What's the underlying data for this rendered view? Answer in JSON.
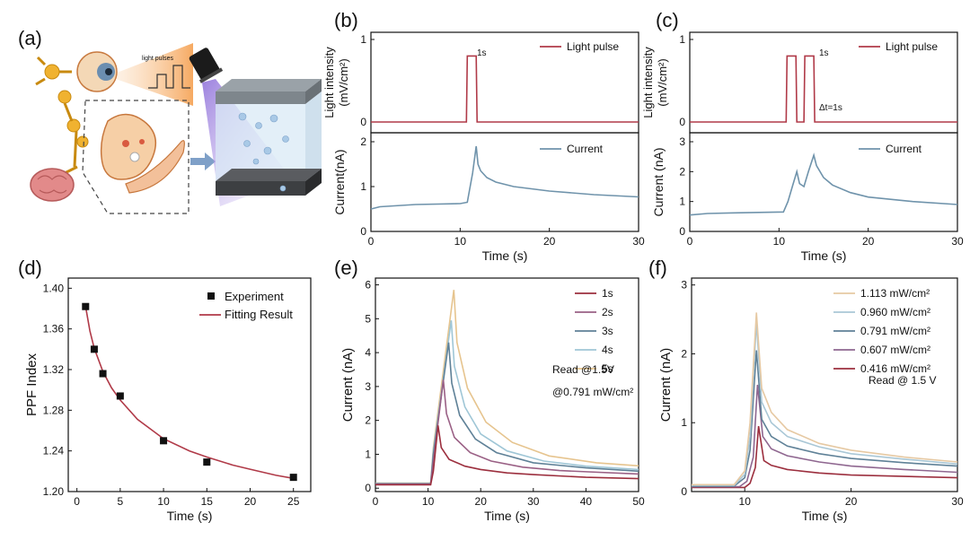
{
  "figure": {
    "panel_labels": {
      "a": "(a)",
      "b": "(b)",
      "c": "(c)",
      "d": "(d)",
      "e": "(e)",
      "f": "(f)"
    },
    "illustration_a": {
      "light_pulses_label": "light pulses"
    },
    "colors": {
      "red": "#b03a48",
      "blue": "#6f93ab",
      "orange": "#f08a3c"
    }
  },
  "chart_data": [
    {
      "id": "b",
      "type": "line",
      "top": {
        "ylabel": "Light intensity (mV/cm²)",
        "ylabel_lines": [
          "Light intensity",
          "(mV/cm²)"
        ],
        "yticks": [
          "1",
          "0"
        ],
        "ylim": [
          0,
          1
        ],
        "series": [
          {
            "name": "Light pulse",
            "color": "#b03a48",
            "x": [
              0,
              10.7,
              10.8,
              11.8,
              11.9,
              30
            ],
            "y": [
              0,
              0,
              0.8,
              0.8,
              0,
              0
            ]
          }
        ],
        "annotations": [
          "1s"
        ]
      },
      "bottom": {
        "ylabel": "Current(nA)",
        "yticks": [
          "0",
          "1",
          "2"
        ],
        "ylim": [
          0,
          2.2
        ],
        "series": [
          {
            "name": "Current",
            "color": "#6f93ab",
            "x": [
              0,
              1,
              5,
              10,
              10.8,
              11.4,
              11.8,
              12,
              12.3,
              13,
              14,
              16,
              20,
              25,
              30
            ],
            "y": [
              0.5,
              0.55,
              0.6,
              0.62,
              0.65,
              1.3,
              1.9,
              1.5,
              1.35,
              1.2,
              1.1,
              1.0,
              0.9,
              0.82,
              0.77
            ]
          }
        ]
      },
      "xlabel": "Time (s)",
      "xticks": [
        "0",
        "10",
        "20",
        "30"
      ],
      "xlim": [
        0,
        30
      ]
    },
    {
      "id": "c",
      "type": "line",
      "top": {
        "ylabel": "Light intensity (mV/cm²)",
        "ylabel_lines": [
          "Light intensity",
          "(mV/cm²)"
        ],
        "yticks": [
          "1",
          "0"
        ],
        "ylim": [
          0,
          1
        ],
        "series": [
          {
            "name": "Light pulse",
            "color": "#b03a48",
            "x": [
              0,
              10.8,
              10.9,
              11.9,
              12,
              12.8,
              12.9,
              13.9,
              14,
              30
            ],
            "y": [
              0,
              0,
              0.8,
              0.8,
              0,
              0,
              0.8,
              0.8,
              0,
              0
            ]
          }
        ],
        "annotations": [
          "1s",
          "Δt=1s"
        ]
      },
      "bottom": {
        "ylabel": "Current (nA)",
        "yticks": [
          "0",
          "1",
          "2",
          "3"
        ],
        "ylim": [
          0,
          3.3
        ],
        "series": [
          {
            "name": "Current",
            "color": "#6f93ab",
            "x": [
              0,
              2,
              5,
              10.5,
              11,
              11.5,
              12,
              12.3,
              12.8,
              13.3,
              13.9,
              14.2,
              15,
              16,
              18,
              20,
              25,
              30
            ],
            "y": [
              0.55,
              0.6,
              0.62,
              0.65,
              1.0,
              1.5,
              2.0,
              1.6,
              1.5,
              2.0,
              2.55,
              2.2,
              1.8,
              1.55,
              1.3,
              1.15,
              1.0,
              0.9
            ]
          }
        ]
      },
      "xlabel": "Time (s)",
      "xticks": [
        "0",
        "10",
        "20",
        "30"
      ],
      "xlim": [
        0,
        30
      ]
    },
    {
      "id": "d",
      "type": "scatter",
      "xlabel": "Time (s)",
      "ylabel": "PPF Index",
      "xticks": [
        "0",
        "5",
        "10",
        "15",
        "20",
        "25"
      ],
      "xlim": [
        -1,
        27
      ],
      "yticks": [
        "1.20",
        "1.24",
        "1.28",
        "1.32",
        "1.36",
        "1.40"
      ],
      "ylim": [
        1.2,
        1.41
      ],
      "series": [
        {
          "name": "Experiment",
          "marker": "square",
          "color": "#111111",
          "x": [
            1,
            2,
            3,
            5,
            10,
            15,
            25
          ],
          "y": [
            1.382,
            1.34,
            1.316,
            1.294,
            1.25,
            1.229,
            1.214
          ]
        },
        {
          "name": "Fitting Result",
          "color": "#b03a48",
          "x": [
            1,
            1.5,
            2,
            3,
            4,
            5,
            7,
            10,
            13,
            15,
            18,
            20,
            23,
            25
          ],
          "y": [
            1.382,
            1.358,
            1.341,
            1.318,
            1.302,
            1.29,
            1.271,
            1.252,
            1.24,
            1.234,
            1.226,
            1.222,
            1.216,
            1.213
          ]
        }
      ]
    },
    {
      "id": "e",
      "type": "line",
      "xlabel": "Time (s)",
      "ylabel": "Current (nA)",
      "xticks": [
        "0",
        "10",
        "20",
        "30",
        "40",
        "50"
      ],
      "xlim": [
        0,
        50
      ],
      "yticks": [
        "0",
        "1",
        "2",
        "3",
        "4",
        "5",
        "6"
      ],
      "ylim": [
        -0.1,
        6.2
      ],
      "annotations": [
        "Read @1.5V",
        "@0.791 mW/cm²"
      ],
      "series": [
        {
          "name": "1s",
          "color": "#9c2f3e",
          "x": [
            0,
            10.5,
            11,
            11.9,
            12.5,
            14,
            17,
            20,
            25,
            30,
            40,
            50
          ],
          "y": [
            0.1,
            0.1,
            0.5,
            1.85,
            1.2,
            0.85,
            0.65,
            0.55,
            0.45,
            0.4,
            0.32,
            0.28
          ]
        },
        {
          "name": "2s",
          "color": "#9a6085",
          "x": [
            0,
            10.5,
            11,
            12.9,
            13.5,
            15,
            18,
            22,
            28,
            35,
            50
          ],
          "y": [
            0.12,
            0.12,
            0.8,
            3.2,
            2.2,
            1.5,
            1.05,
            0.8,
            0.62,
            0.52,
            0.42
          ]
        },
        {
          "name": "3s",
          "color": "#5f8197",
          "x": [
            0,
            10.5,
            11,
            13.9,
            14.5,
            16,
            19,
            23,
            30,
            40,
            50
          ],
          "y": [
            0.13,
            0.13,
            1.0,
            4.3,
            3.1,
            2.15,
            1.45,
            1.05,
            0.75,
            0.6,
            0.5
          ]
        },
        {
          "name": "4s",
          "color": "#9fc6d6",
          "x": [
            0,
            10.5,
            11,
            14.4,
            15,
            17,
            20,
            25,
            32,
            40,
            50
          ],
          "y": [
            0.14,
            0.14,
            1.1,
            4.95,
            3.6,
            2.4,
            1.6,
            1.1,
            0.8,
            0.65,
            0.55
          ]
        },
        {
          "name": "5s",
          "color": "#e6c48e",
          "x": [
            0,
            10.5,
            11,
            14.9,
            15.5,
            17.5,
            21,
            26,
            33,
            42,
            50
          ],
          "y": [
            0.15,
            0.15,
            1.2,
            5.85,
            4.3,
            2.95,
            1.95,
            1.35,
            0.95,
            0.75,
            0.66
          ]
        }
      ]
    },
    {
      "id": "f",
      "type": "line",
      "xlabel": "Time (s)",
      "ylabel": "Current (nA)",
      "xticks": [
        "10",
        "20",
        "30"
      ],
      "xlim": [
        5,
        30
      ],
      "yticks": [
        "0",
        "1",
        "2",
        "3"
      ],
      "ylim": [
        0,
        3.1
      ],
      "annotations": [
        "Read @ 1.5 V"
      ],
      "series": [
        {
          "name": "1.113 mW/cm²",
          "color": "#e6c9a3",
          "x": [
            5,
            9,
            10,
            10.5,
            11.1,
            11.6,
            12.5,
            14,
            17,
            20,
            25,
            30
          ],
          "y": [
            0.1,
            0.1,
            0.3,
            1.0,
            2.6,
            1.5,
            1.15,
            0.9,
            0.7,
            0.6,
            0.5,
            0.43
          ]
        },
        {
          "name": "0.960 mW/cm²",
          "color": "#a9c7d6",
          "x": [
            5,
            9,
            10,
            10.5,
            11.1,
            11.6,
            12.5,
            14,
            17,
            20,
            25,
            30
          ],
          "y": [
            0.09,
            0.09,
            0.25,
            0.8,
            2.45,
            1.3,
            1.0,
            0.8,
            0.65,
            0.55,
            0.47,
            0.4
          ]
        },
        {
          "name": "0.791 mW/cm²",
          "color": "#5f8197",
          "x": [
            5,
            9,
            10,
            10.5,
            11.1,
            11.6,
            12.5,
            14,
            17,
            20,
            25,
            30
          ],
          "y": [
            0.08,
            0.08,
            0.2,
            0.6,
            2.05,
            1.05,
            0.8,
            0.66,
            0.55,
            0.48,
            0.42,
            0.37
          ]
        },
        {
          "name": "0.607 mW/cm²",
          "color": "#8f6790",
          "x": [
            5,
            9.5,
            10.2,
            10.8,
            11.2,
            11.7,
            12.5,
            14,
            17,
            20,
            25,
            30
          ],
          "y": [
            0.07,
            0.07,
            0.15,
            0.5,
            1.55,
            0.8,
            0.62,
            0.52,
            0.43,
            0.37,
            0.32,
            0.28
          ]
        },
        {
          "name": "0.416 mW/cm²",
          "color": "#9c2f3e",
          "x": [
            5,
            10,
            10.5,
            11,
            11.3,
            11.8,
            12.5,
            14,
            17,
            20,
            25,
            30
          ],
          "y": [
            0.06,
            0.06,
            0.12,
            0.35,
            0.95,
            0.45,
            0.38,
            0.32,
            0.27,
            0.24,
            0.22,
            0.2
          ]
        }
      ]
    }
  ]
}
